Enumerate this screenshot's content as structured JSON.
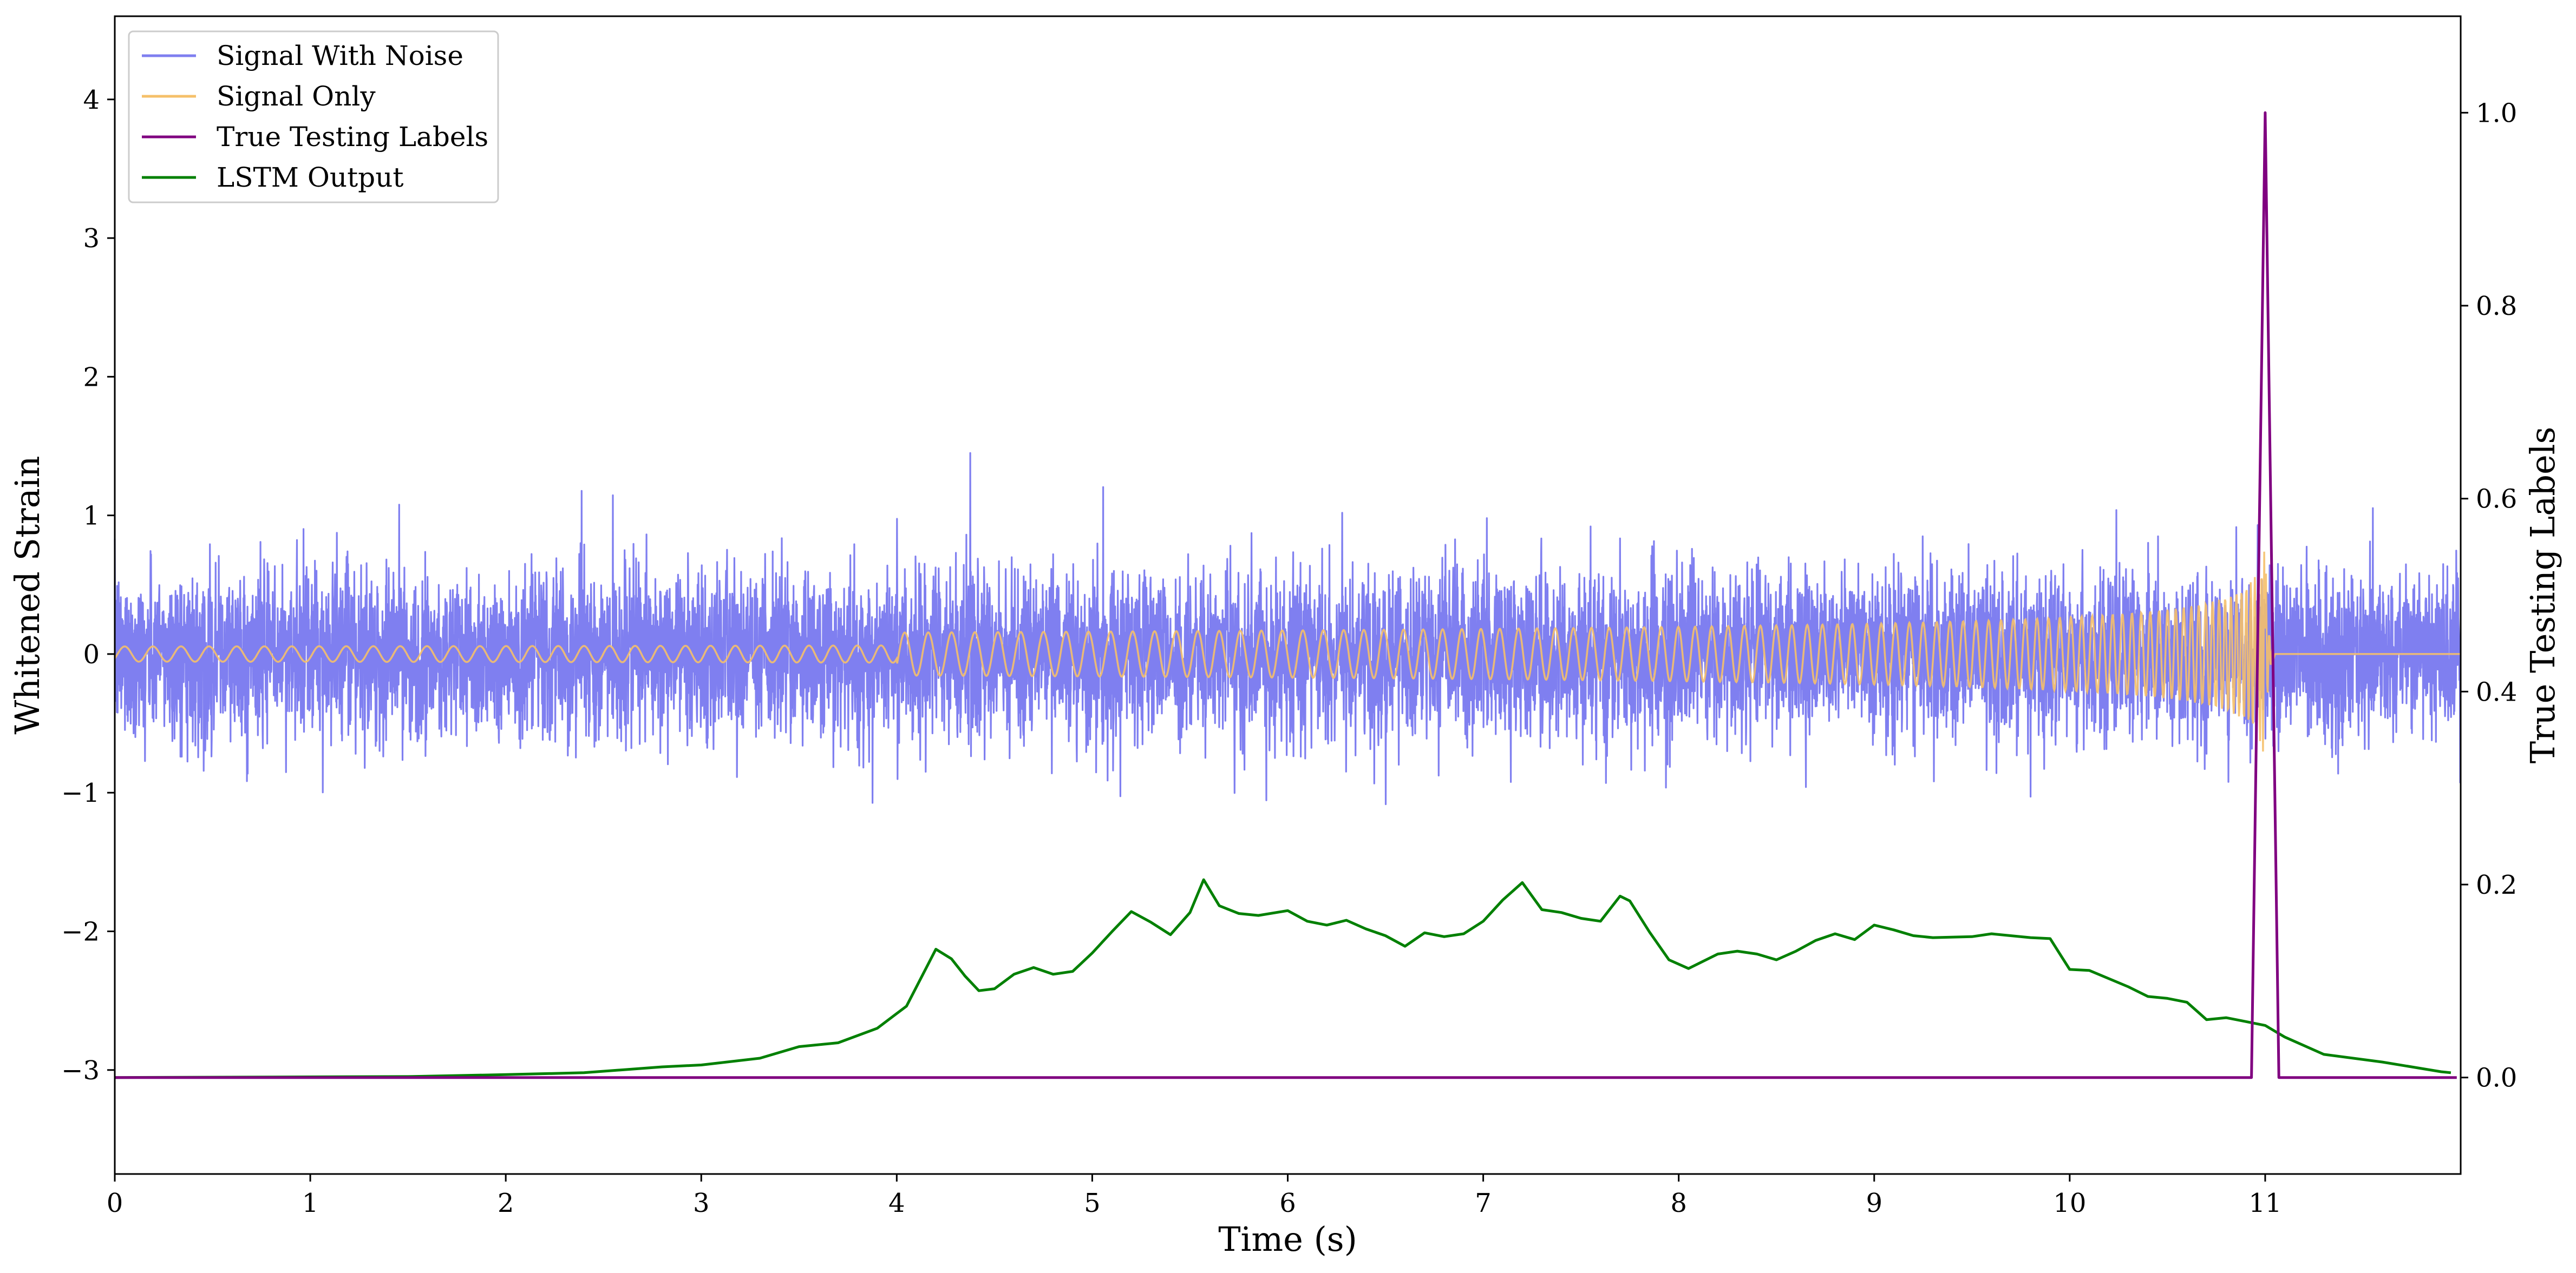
{
  "chart_data": {
    "type": "line",
    "title": "",
    "xlabel": "Time (s)",
    "ylabel": "Whitened Strain",
    "y2label": "True Testing Labels",
    "xlim": [
      0,
      12
    ],
    "ylim": [
      -3.75,
      4.6
    ],
    "y2lim": [
      -0.1,
      1.1
    ],
    "xticks": [
      0,
      1,
      2,
      3,
      4,
      5,
      6,
      7,
      8,
      9,
      10,
      11
    ],
    "yticks": [
      -3,
      -2,
      -1,
      0,
      1,
      2,
      3,
      4
    ],
    "y2ticks": [
      0.0,
      0.2,
      0.4,
      0.6,
      0.8,
      1.0
    ],
    "xtick_labels": [
      "0",
      "1",
      "2",
      "3",
      "4",
      "5",
      "6",
      "7",
      "8",
      "9",
      "10",
      "11"
    ],
    "ytick_labels": [
      "−3",
      "−2",
      "−1",
      "0",
      "1",
      "2",
      "3",
      "4"
    ],
    "y2tick_labels": [
      "0.0",
      "0.2",
      "0.4",
      "0.6",
      "0.8",
      "1.0"
    ],
    "grid": false,
    "legend": {
      "placement": "top-left"
    },
    "series": [
      {
        "name": "Signal With Noise",
        "axis": "left",
        "color": "#7f7ff0",
        "style": "noise",
        "approx_sigma": 0.3,
        "approx_envelope": [
          -1.3,
          1.45
        ]
      },
      {
        "name": "Signal Only",
        "axis": "left",
        "color": "#f5c06a",
        "style": "chirp",
        "merger_time": 11.0,
        "peak_amplitude": 0.8
      },
      {
        "name": "True Testing Labels",
        "axis": "right",
        "color": "#800080",
        "x": [
          0,
          10.93,
          11.0,
          11.07,
          11.98
        ],
        "y": [
          0,
          0,
          1.0,
          0,
          0
        ]
      },
      {
        "name": "LSTM Output",
        "axis": "right",
        "color": "#008000",
        "x": [
          0,
          1.5,
          2.0,
          2.4,
          2.8,
          3.0,
          3.3,
          3.5,
          3.7,
          3.9,
          4.05,
          4.2,
          4.28,
          4.35,
          4.42,
          4.5,
          4.6,
          4.7,
          4.8,
          4.9,
          5.0,
          5.1,
          5.2,
          5.3,
          5.4,
          5.5,
          5.57,
          5.65,
          5.75,
          5.85,
          6.0,
          6.1,
          6.2,
          6.3,
          6.4,
          6.5,
          6.6,
          6.7,
          6.8,
          6.9,
          7.0,
          7.1,
          7.2,
          7.3,
          7.4,
          7.5,
          7.6,
          7.7,
          7.75,
          7.85,
          7.95,
          8.05,
          8.2,
          8.3,
          8.4,
          8.5,
          8.6,
          8.7,
          8.8,
          8.9,
          9.0,
          9.1,
          9.2,
          9.3,
          9.5,
          9.6,
          9.8,
          9.9,
          10.0,
          10.1,
          10.3,
          10.4,
          10.5,
          10.6,
          10.7,
          10.8,
          10.9,
          11.0,
          11.1,
          11.3,
          11.6,
          11.9,
          11.95
        ],
        "y": [
          0.0,
          0.001,
          0.003,
          0.005,
          0.011,
          0.013,
          0.02,
          0.032,
          0.036,
          0.051,
          0.074,
          0.133,
          0.123,
          0.105,
          0.09,
          0.092,
          0.107,
          0.114,
          0.107,
          0.11,
          0.129,
          0.151,
          0.172,
          0.161,
          0.148,
          0.171,
          0.205,
          0.178,
          0.17,
          0.168,
          0.173,
          0.162,
          0.158,
          0.163,
          0.154,
          0.147,
          0.136,
          0.15,
          0.146,
          0.149,
          0.162,
          0.184,
          0.202,
          0.174,
          0.171,
          0.165,
          0.162,
          0.188,
          0.183,
          0.151,
          0.122,
          0.113,
          0.128,
          0.131,
          0.128,
          0.122,
          0.131,
          0.142,
          0.149,
          0.143,
          0.158,
          0.153,
          0.147,
          0.145,
          0.146,
          0.149,
          0.145,
          0.144,
          0.112,
          0.111,
          0.094,
          0.084,
          0.082,
          0.078,
          0.06,
          0.062,
          0.058,
          0.054,
          0.042,
          0.024,
          0.016,
          0.006,
          0.005
        ]
      }
    ]
  }
}
